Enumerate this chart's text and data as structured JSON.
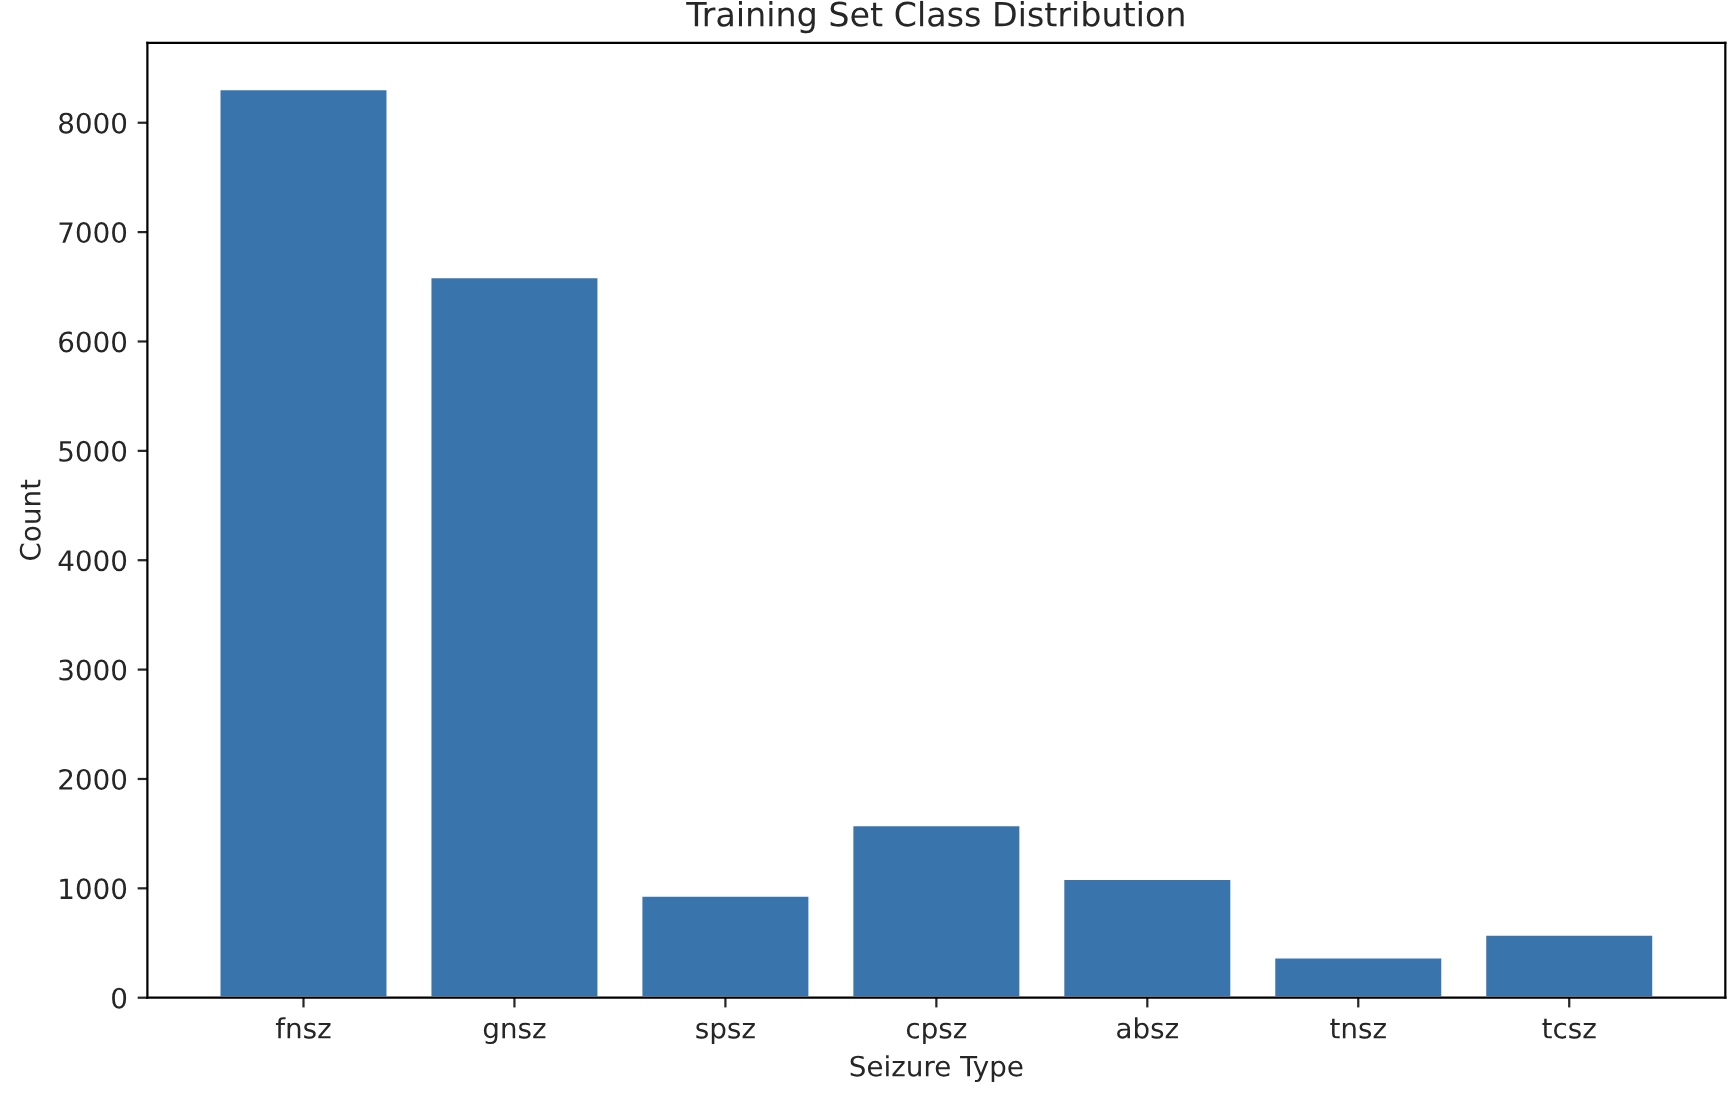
{
  "chart_data": {
    "type": "bar",
    "title": "Training Set Class Distribution",
    "xlabel": "Seizure Type",
    "ylabel": "Count",
    "categories": [
      "fnsz",
      "gnsz",
      "spsz",
      "cpsz",
      "absz",
      "tnsz",
      "tcsz"
    ],
    "values": [
      8310,
      6590,
      935,
      1580,
      1090,
      370,
      580
    ],
    "color": "#3a74ad",
    "ylim": [
      0,
      8730
    ],
    "yticks": [
      0,
      1000,
      2000,
      3000,
      4000,
      5000,
      6000,
      7000,
      8000
    ],
    "grid": false
  }
}
